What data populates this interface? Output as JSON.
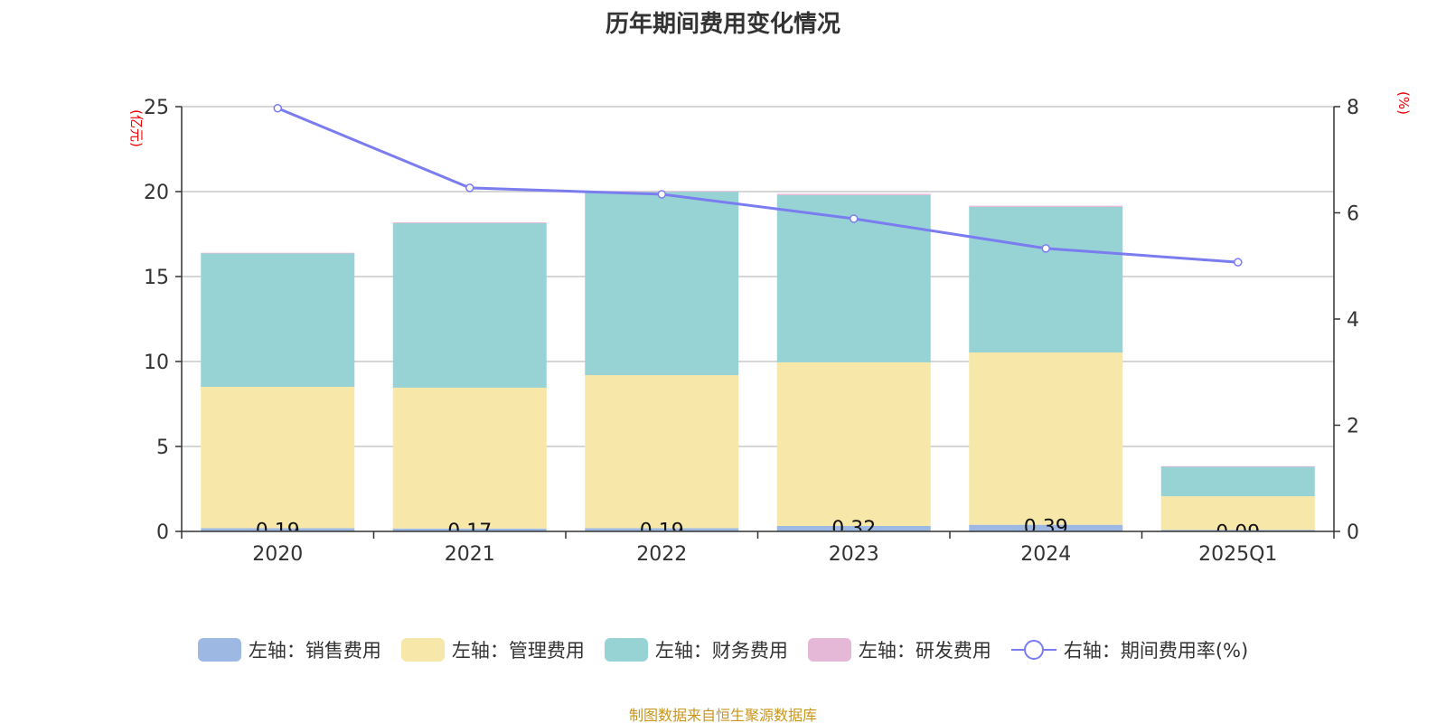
{
  "title": "历年期间费用变化情况",
  "source": "制图数据来自恒生聚源数据库",
  "chart_data": {
    "type": "bar",
    "stacked": true,
    "title": "历年期间费用变化情况",
    "categories": [
      "2020",
      "2021",
      "2022",
      "2023",
      "2024",
      "2025Q1"
    ],
    "ylabel_left": "(亿元)",
    "ylabel_right": "(%)",
    "ylim_left": [
      0,
      25
    ],
    "yticks_left": [
      0,
      5,
      10,
      15,
      20,
      25
    ],
    "ylim_right": [
      0,
      8
    ],
    "yticks_right": [
      0,
      2,
      4,
      6,
      8
    ],
    "grid": true,
    "legend_position": "bottom",
    "series": [
      {
        "name": "左轴：销售费用",
        "axis": "left",
        "color": "#9db8e2",
        "values": [
          0.19,
          0.17,
          0.19,
          0.32,
          0.39,
          0.09
        ],
        "labels": [
          "0.19",
          "0.17",
          "0.19",
          "0.32",
          "0.39",
          "0.09"
        ]
      },
      {
        "name": "左轴：管理费用",
        "axis": "left",
        "color": "#f7e7a8",
        "values": [
          8.32,
          8.29,
          9.01,
          9.63,
          10.14,
          1.98
        ]
      },
      {
        "name": "左轴：财务费用",
        "axis": "left",
        "color": "#97d3d4",
        "values": [
          7.87,
          9.68,
          10.8,
          9.84,
          8.57,
          1.76
        ]
      },
      {
        "name": "左轴：研发费用",
        "axis": "left",
        "color": "#e6b8d8",
        "values": [
          0.02,
          0.05,
          0.03,
          0.08,
          0.07,
          0.01
        ]
      },
      {
        "name": "右轴：期间费用率(%)",
        "axis": "right",
        "type": "line",
        "color": "#7a7cf0",
        "values": [
          7.97,
          6.47,
          6.35,
          5.89,
          5.33,
          5.07
        ]
      }
    ]
  }
}
